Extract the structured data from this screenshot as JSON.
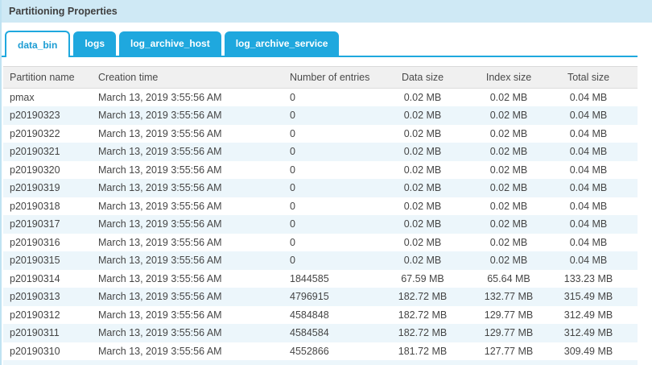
{
  "panel": {
    "title": "Partitioning Properties"
  },
  "tabs": [
    {
      "label": "data_bin",
      "active": true
    },
    {
      "label": "logs",
      "active": false
    },
    {
      "label": "log_archive_host",
      "active": false
    },
    {
      "label": "log_archive_service",
      "active": false
    }
  ],
  "colors": {
    "accent_blue": "#1fa8de",
    "title_bar_bg": "#cfe9f5",
    "header_bg": "#f0f0f0",
    "stripe_bg": "#ecf6fb"
  },
  "table": {
    "columns": [
      "Partition name",
      "Creation time",
      "Number of entries",
      "Data size",
      "Index size",
      "Total size"
    ],
    "rows": [
      [
        "pmax",
        "March 13, 2019 3:55:56 AM",
        "0",
        "0.02 MB",
        "0.02 MB",
        "0.04 MB"
      ],
      [
        "p20190323",
        "March 13, 2019 3:55:56 AM",
        "0",
        "0.02 MB",
        "0.02 MB",
        "0.04 MB"
      ],
      [
        "p20190322",
        "March 13, 2019 3:55:56 AM",
        "0",
        "0.02 MB",
        "0.02 MB",
        "0.04 MB"
      ],
      [
        "p20190321",
        "March 13, 2019 3:55:56 AM",
        "0",
        "0.02 MB",
        "0.02 MB",
        "0.04 MB"
      ],
      [
        "p20190320",
        "March 13, 2019 3:55:56 AM",
        "0",
        "0.02 MB",
        "0.02 MB",
        "0.04 MB"
      ],
      [
        "p20190319",
        "March 13, 2019 3:55:56 AM",
        "0",
        "0.02 MB",
        "0.02 MB",
        "0.04 MB"
      ],
      [
        "p20190318",
        "March 13, 2019 3:55:56 AM",
        "0",
        "0.02 MB",
        "0.02 MB",
        "0.04 MB"
      ],
      [
        "p20190317",
        "March 13, 2019 3:55:56 AM",
        "0",
        "0.02 MB",
        "0.02 MB",
        "0.04 MB"
      ],
      [
        "p20190316",
        "March 13, 2019 3:55:56 AM",
        "0",
        "0.02 MB",
        "0.02 MB",
        "0.04 MB"
      ],
      [
        "p20190315",
        "March 13, 2019 3:55:56 AM",
        "0",
        "0.02 MB",
        "0.02 MB",
        "0.04 MB"
      ],
      [
        "p20190314",
        "March 13, 2019 3:55:56 AM",
        "1844585",
        "67.59 MB",
        "65.64 MB",
        "133.23 MB"
      ],
      [
        "p20190313",
        "March 13, 2019 3:55:56 AM",
        "4796915",
        "182.72 MB",
        "132.77 MB",
        "315.49 MB"
      ],
      [
        "p20190312",
        "March 13, 2019 3:55:56 AM",
        "4584848",
        "182.72 MB",
        "129.77 MB",
        "312.49 MB"
      ],
      [
        "p20190311",
        "March 13, 2019 3:55:56 AM",
        "4584584",
        "182.72 MB",
        "129.77 MB",
        "312.49 MB"
      ],
      [
        "p20190310",
        "March 13, 2019 3:55:56 AM",
        "4552866",
        "181.72 MB",
        "127.77 MB",
        "309.49 MB"
      ]
    ]
  }
}
